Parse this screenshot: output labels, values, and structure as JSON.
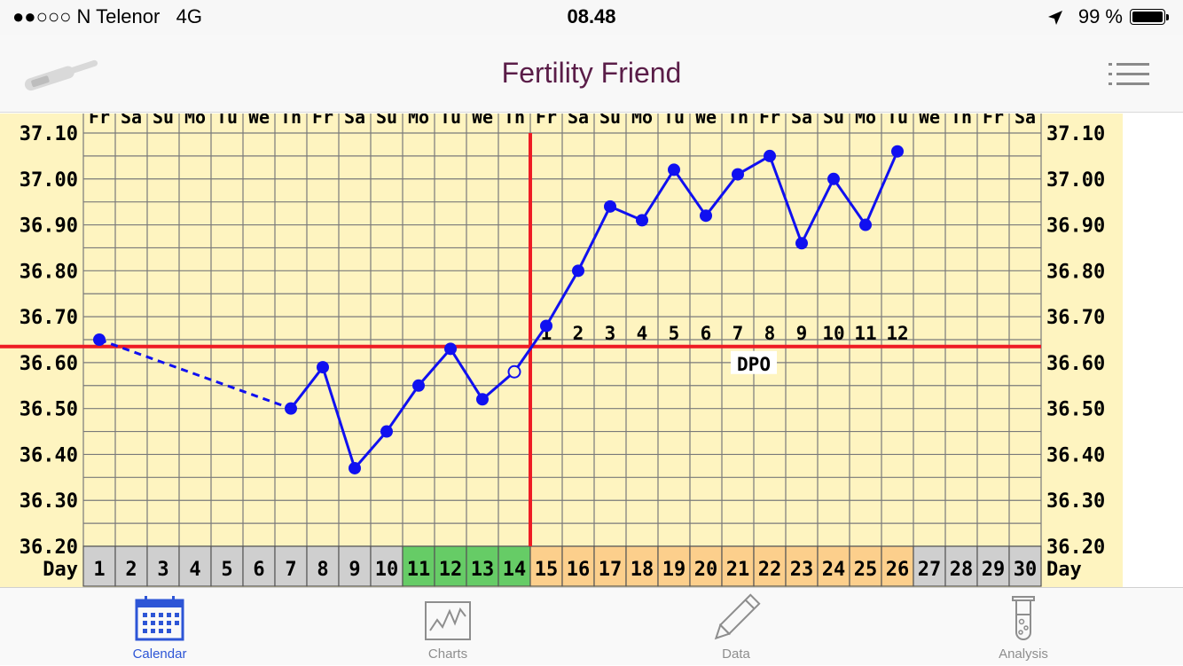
{
  "status_bar": {
    "carrier": "●●○○○ N Telenor   4G",
    "time": "08.48",
    "battery": "99 %",
    "icons": [
      "location-arrow-icon",
      "battery-icon"
    ]
  },
  "nav": {
    "title": "Fertility Friend",
    "left_icon": "thermometer-icon",
    "right_icon": "menu-icon",
    "title_color": "#5a1d48"
  },
  "chart_data": {
    "type": "line",
    "y_ticks": [
      "37.10",
      "37.00",
      "36.90",
      "36.80",
      "36.70",
      "36.60",
      "36.50",
      "36.40",
      "36.30",
      "36.20"
    ],
    "ylim": [
      36.2,
      37.1
    ],
    "weekdays": [
      "Fr",
      "Sa",
      "Su",
      "Mo",
      "Tu",
      "We",
      "Th",
      "Fr",
      "Sa",
      "Su",
      "Mo",
      "Tu",
      "We",
      "Th",
      "Fr",
      "Sa",
      "Su",
      "Mo",
      "Tu",
      "We",
      "Th",
      "Fr",
      "Sa",
      "Su",
      "Mo",
      "Tu",
      "We",
      "Th",
      "Fr",
      "Sa"
    ],
    "days": [
      "1",
      "2",
      "3",
      "4",
      "5",
      "6",
      "7",
      "8",
      "9",
      "10",
      "11",
      "12",
      "13",
      "14",
      "15",
      "16",
      "17",
      "18",
      "19",
      "20",
      "21",
      "22",
      "23",
      "24",
      "25",
      "26",
      "27",
      "28",
      "29",
      "30"
    ],
    "day_label": "Day",
    "day_phase": [
      "gray",
      "gray",
      "gray",
      "gray",
      "gray",
      "gray",
      "gray",
      "gray",
      "gray",
      "gray",
      "green",
      "green",
      "green",
      "green",
      "orange",
      "orange",
      "orange",
      "orange",
      "orange",
      "orange",
      "orange",
      "orange",
      "orange",
      "orange",
      "orange",
      "orange",
      "gray",
      "gray",
      "gray",
      "gray"
    ],
    "temps": [
      36.65,
      null,
      null,
      null,
      null,
      null,
      36.5,
      36.59,
      36.37,
      36.45,
      36.55,
      36.63,
      36.52,
      36.58,
      36.68,
      36.8,
      36.94,
      36.91,
      37.02,
      36.92,
      37.01,
      37.05,
      36.86,
      37.0,
      36.9,
      37.06
    ],
    "discarded_day": 14,
    "coverline": 36.635,
    "ovulation_day": 14,
    "dpo_labels": [
      "1",
      "2",
      "3",
      "4",
      "5",
      "6",
      "7",
      "8",
      "9",
      "10",
      "11",
      "12"
    ],
    "dpo_text": "DPO",
    "colors": {
      "background": "#fef4c0",
      "grid": "#7a7a7a",
      "series": "#1010f0",
      "coverline": "#ee1c24",
      "phase_gray": "#cfcfcf",
      "phase_green": "#66cc66",
      "phase_orange": "#fccf8c"
    }
  },
  "tabs": [
    {
      "label": "Calendar",
      "icon": "calendar-icon",
      "active": true
    },
    {
      "label": "Charts",
      "icon": "chart-icon",
      "active": false
    },
    {
      "label": "Data",
      "icon": "pencil-icon",
      "active": false
    },
    {
      "label": "Analysis",
      "icon": "test-tube-icon",
      "active": false
    }
  ]
}
